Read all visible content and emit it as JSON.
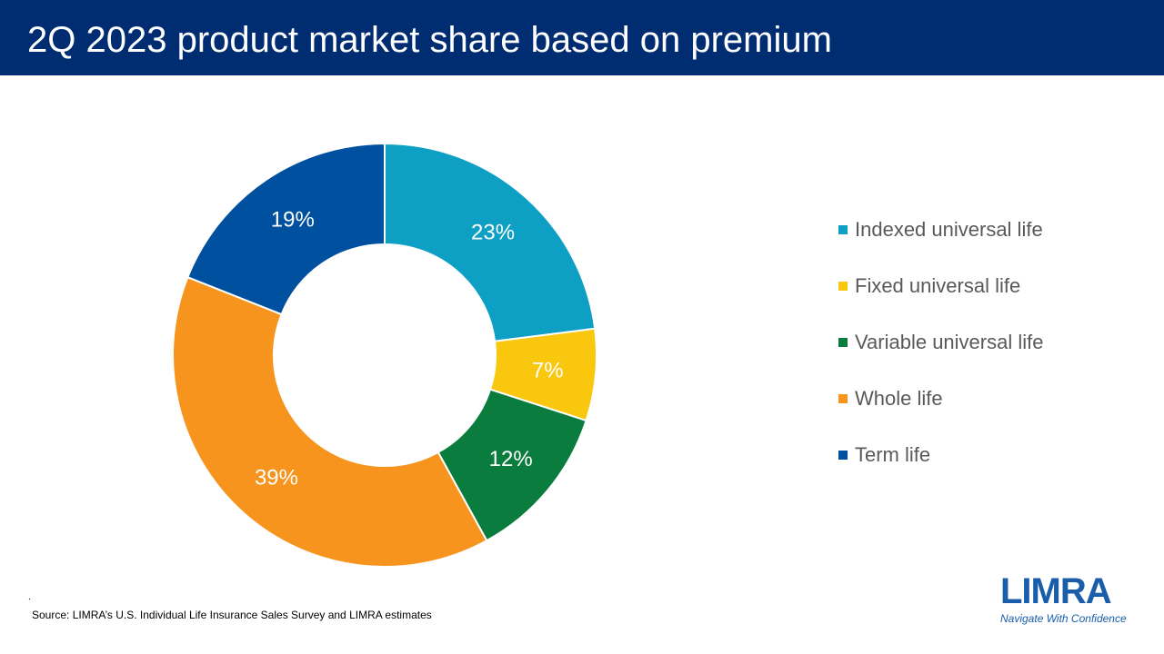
{
  "title": "2Q 2023 product market share based on premium",
  "chart_data": {
    "type": "pie",
    "subtype": "donut",
    "title": "2Q 2023 product market share based on premium",
    "categories": [
      "Indexed universal life",
      "Fixed universal life",
      "Variable universal life",
      "Whole life",
      "Term life"
    ],
    "values": [
      23,
      7,
      12,
      39,
      19
    ],
    "labels": [
      "23%",
      "7%",
      "12%",
      "39%",
      "19%"
    ],
    "colors": [
      "#0e9fc4",
      "#f9c80e",
      "#0a7d3e",
      "#f7941d",
      "#0050a0"
    ],
    "legend_position": "right"
  },
  "source": "Source: LIMRA’s U.S. Individual Life Insurance Sales Survey and LIMRA estimates",
  "source_mark": ".",
  "logo": {
    "word": "LIMRA",
    "tagline": "Navigate With Confidence"
  }
}
